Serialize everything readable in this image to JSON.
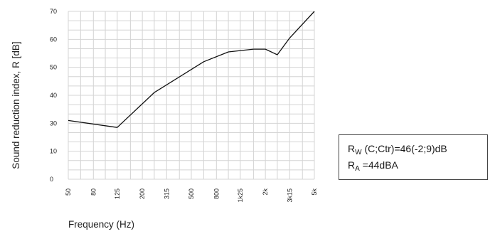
{
  "chart_data": {
    "type": "line",
    "ylabel": "Sound reduction index, R [dB]",
    "xlabel": "Frequency (Hz)",
    "x_tick_labels": [
      "50",
      "80",
      "125",
      "200",
      "315",
      "500",
      "800",
      "1k25",
      "2k",
      "3k15",
      "5k"
    ],
    "y_tick_labels": [
      "0",
      "10",
      "30",
      "40",
      "50",
      "60",
      "70"
    ],
    "y_tick_values": [
      0,
      10,
      30,
      40,
      50,
      60,
      70
    ],
    "x_range": [
      "50",
      "5k"
    ],
    "ylim": [
      0,
      70
    ],
    "grid": true,
    "series": [
      {
        "x": [
          "50",
          "125",
          "250",
          "630",
          "1000",
          "1600",
          "2000",
          "2500",
          "3150",
          "5000"
        ],
        "y": [
          31,
          27,
          41,
          52,
          55.5,
          56.5,
          56.5,
          54.5,
          60.5,
          70
        ]
      }
    ],
    "line_color": "#111111",
    "grid_color": "#d4d4d4"
  },
  "rating_box": {
    "rw_main": "R",
    "rw_sub": "W",
    "rw_rest": " (C;Ctr)=46(-2;9)dB",
    "ra_main": "R",
    "ra_sub": "A",
    "ra_rest": " =44dBA"
  }
}
